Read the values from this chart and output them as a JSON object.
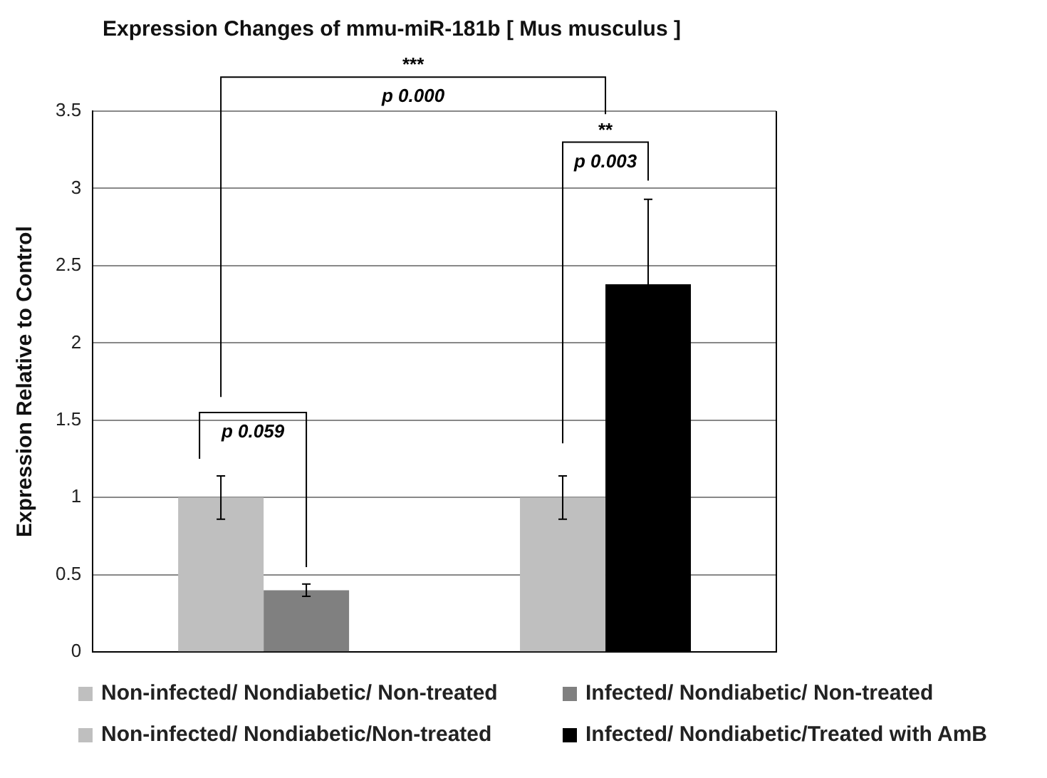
{
  "chart_data": {
    "type": "bar",
    "title": "Expression Changes of mmu-miR-181b [ Mus musculus ]",
    "ylabel": "Expression Relative to Control",
    "categories": [
      null,
      null
    ],
    "series": [
      {
        "name": "Non-infected/ Nondiabetic/ Non-treated",
        "color": "#bfbfbf",
        "values": [
          1,
          null
        ],
        "errors": [
          0.14,
          null
        ]
      },
      {
        "name": "Infected/ Nondiabetic/ Non-treated",
        "color": "#808080",
        "values": [
          0.4,
          null
        ],
        "errors": [
          0.04,
          null
        ]
      },
      {
        "name": "Non-infected/ Nondiabetic/Non-treated",
        "color": "#bfbfbf",
        "values": [
          null,
          1
        ],
        "errors": [
          null,
          0.14
        ]
      },
      {
        "name": "Infected/ Nondiabetic/Treated with AmB",
        "color": "#000000",
        "values": [
          null,
          2.38
        ],
        "errors": [
          null,
          0.55
        ]
      }
    ],
    "ylim": [
      0,
      3.5
    ],
    "yticks": [
      0,
      0.5,
      1,
      1.5,
      2,
      2.5,
      3,
      3.5
    ],
    "grid": "y",
    "legend": "bottom",
    "annotations": [
      "***",
      "p 0.000",
      "**",
      "p 0.003",
      "p 0.059"
    ]
  }
}
